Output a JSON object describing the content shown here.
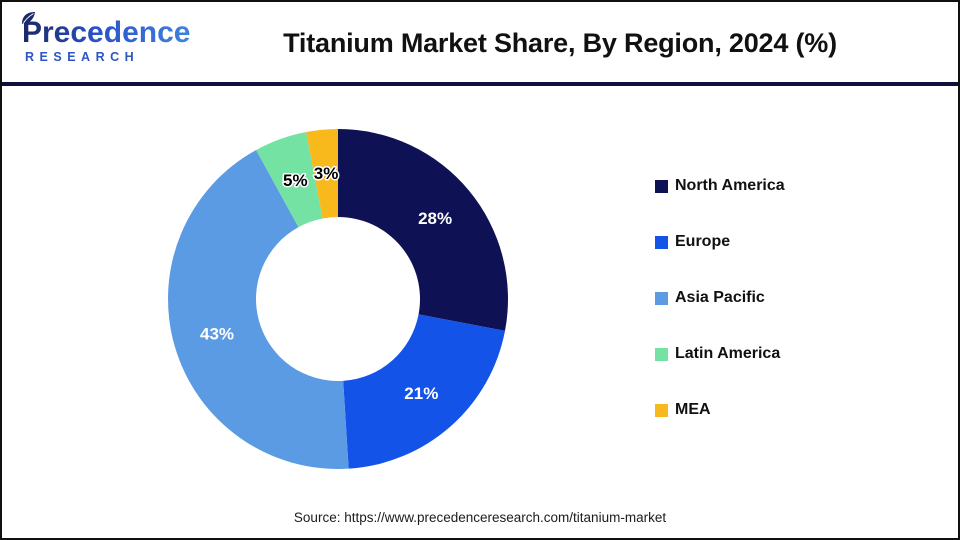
{
  "header": {
    "logo": {
      "line1": "Precedence",
      "line2": "RESEARCH"
    },
    "title": "Titanium Market Share, By Region, 2024 (%)"
  },
  "chart_data": {
    "type": "pie",
    "subtype": "donut",
    "title": "Titanium Market Share, By Region, 2024 (%)",
    "start_angle_deg": 0,
    "direction": "clockwise",
    "categories": [
      "North America",
      "Europe",
      "Asia Pacific",
      "Latin America",
      "MEA"
    ],
    "values": [
      28,
      21,
      43,
      5,
      3
    ],
    "labels": [
      "28%",
      "21%",
      "43%",
      "5%",
      "3%"
    ],
    "unit": "%",
    "colors": [
      "#0e1254",
      "#1453e8",
      "#5b9be4",
      "#74e2a3",
      "#f8b91d"
    ],
    "label_colors": [
      "#ffffff",
      "#ffffff",
      "#ffffff",
      "#000000",
      "#000000"
    ],
    "legend_position": "right",
    "hole_ratio": 0.48
  },
  "footer": {
    "source": "Source: https://www.precedenceresearch.com/titanium-market"
  },
  "style": {
    "divider_color": "#11103c",
    "brand_navy": "#1b2766",
    "brand_blue": "#2d55c4"
  }
}
